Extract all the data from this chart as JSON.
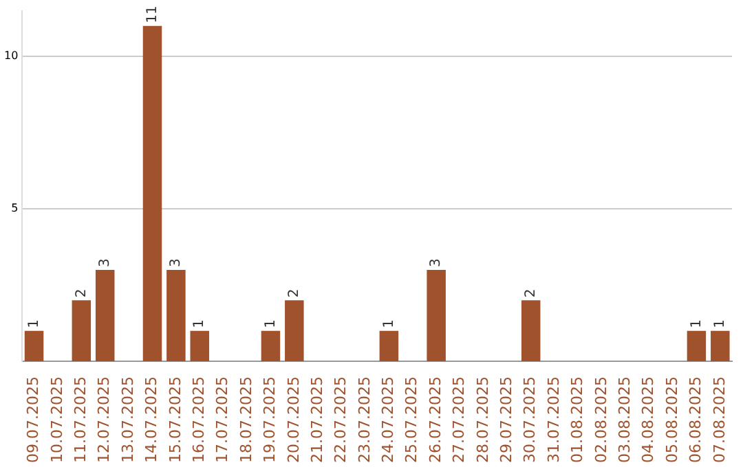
{
  "chart_data": {
    "type": "bar",
    "categories": [
      "09.07.2025",
      "10.07.2025",
      "11.07.2025",
      "12.07.2025",
      "13.07.2025",
      "14.07.2025",
      "15.07.2025",
      "16.07.2025",
      "17.07.2025",
      "18.07.2025",
      "19.07.2025",
      "20.07.2025",
      "21.07.2025",
      "22.07.2025",
      "23.07.2025",
      "24.07.2025",
      "25.07.2025",
      "26.07.2025",
      "27.07.2025",
      "28.07.2025",
      "29.07.2025",
      "30.07.2025",
      "31.07.2025",
      "01.08.2025",
      "02.08.2025",
      "03.08.2025",
      "04.08.2025",
      "05.08.2025",
      "06.08.2025",
      "07.08.2025"
    ],
    "values": [
      1,
      0,
      2,
      3,
      0,
      11,
      3,
      1,
      0,
      0,
      1,
      2,
      0,
      0,
      0,
      1,
      0,
      3,
      0,
      0,
      0,
      2,
      0,
      0,
      0,
      0,
      0,
      0,
      1,
      1
    ],
    "value_labels": [
      "1",
      null,
      "2",
      "3",
      null,
      "11",
      "3",
      "1",
      null,
      null,
      "1",
      "2",
      null,
      null,
      null,
      "1",
      null,
      "3",
      null,
      null,
      null,
      "2",
      null,
      null,
      null,
      null,
      null,
      null,
      "1",
      "1"
    ],
    "color": "#a0522d",
    "ylim": [
      0,
      11.5
    ],
    "yticks": [
      5,
      10
    ],
    "grid": "y"
  }
}
